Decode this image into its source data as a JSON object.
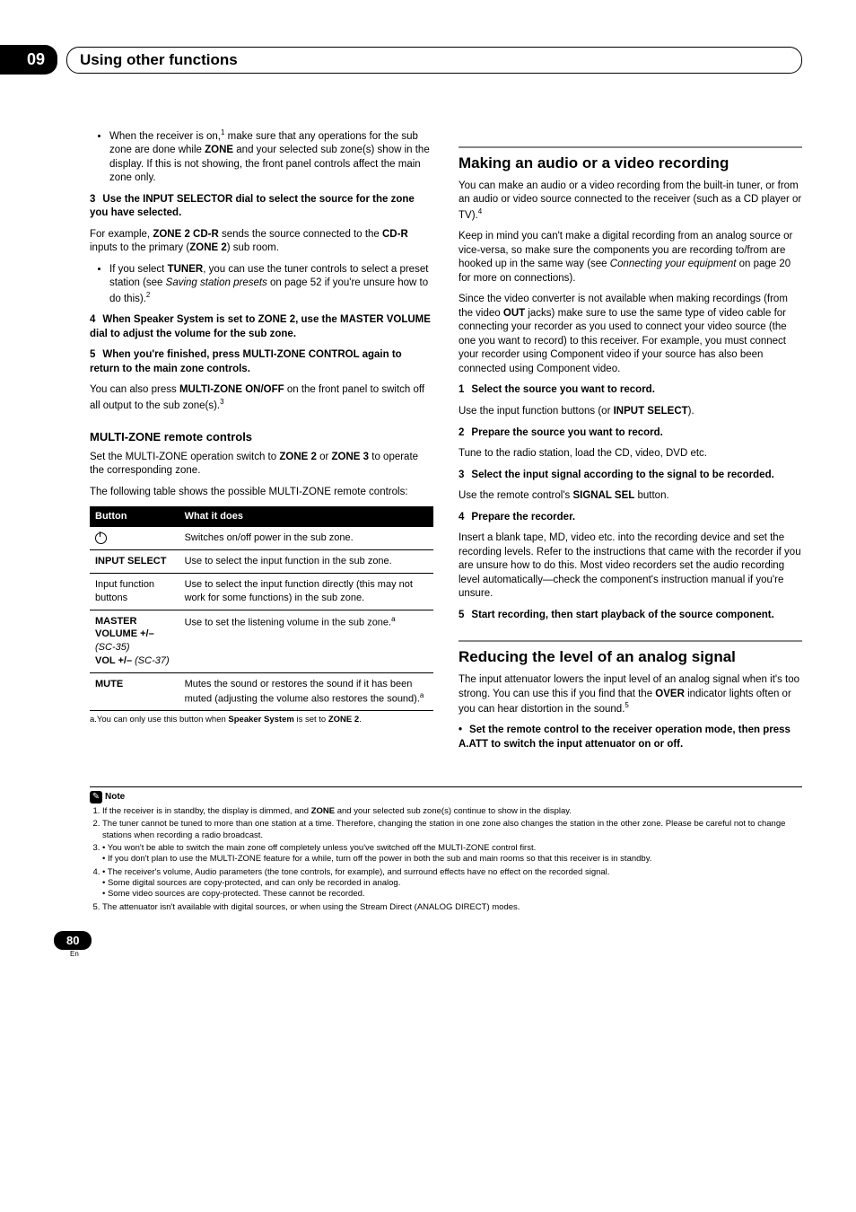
{
  "header": {
    "chapter_number": "09",
    "chapter_title": "Using other functions"
  },
  "left": {
    "bullet1_a": "When the receiver is on,",
    "bullet1_sup": "1",
    "bullet1_b": " make sure that any operations for the sub zone are done while ",
    "bullet1_bold": "ZONE",
    "bullet1_c": " and your selected sub zone(s) show in the display. If this is not showing, the front panel controls affect the main zone only.",
    "step3": "Use the INPUT SELECTOR dial to select the source for the zone you have selected.",
    "step3_body_a": "For example, ",
    "step3_bold1": "ZONE 2 CD-R",
    "step3_body_b": " sends the source connected to the ",
    "step3_bold2": "CD-R",
    "step3_body_c": " inputs to the primary (",
    "step3_bold3": "ZONE 2",
    "step3_body_d": ") sub room.",
    "step3_sub_a": "If you select ",
    "step3_sub_bold": "TUNER",
    "step3_sub_b": ", you can use the tuner controls to select a preset station (see ",
    "step3_sub_ital": "Saving station presets",
    "step3_sub_c": " on page 52 if you're unsure how to do this).",
    "step3_sub_sup": "2",
    "step4": "When Speaker System is set to ZONE 2, use the MASTER VOLUME dial to adjust the volume for the sub zone.",
    "step5": "When you're finished, press MULTI-ZONE CONTROL again to return to the main zone controls.",
    "step5_body_a": "You can also press ",
    "step5_bold": "MULTI-ZONE ON/OFF",
    "step5_body_b": " on the front panel to switch off all output to the sub zone(s).",
    "step5_sup": "3",
    "subhead": "MULTI-ZONE remote controls",
    "subhead_body_a": "Set the MULTI-ZONE operation switch to ",
    "subhead_bold1": "ZONE 2",
    "subhead_body_b": " or ",
    "subhead_bold2": "ZONE 3",
    "subhead_body_c": " to operate the corresponding zone.",
    "table_intro": "The following table shows the possible MULTI-ZONE remote controls:",
    "table": {
      "col1": "Button",
      "col2": "What it does",
      "rows": [
        {
          "c1": "__POWER__",
          "c2": "Switches on/off power in the sub zone."
        },
        {
          "c1_bold": "INPUT SELECT",
          "c2": "Use to select the input function in the sub zone."
        },
        {
          "c1": "Input function buttons",
          "c2": "Use to select the input function directly (this may not work for some functions) in the sub zone."
        },
        {
          "c1_bold": "MASTER VOLUME +/–",
          "c1_ital": " (SC-35)",
          "newline": true,
          "c1_bold2": "VOL +/–",
          "c1_ital2": " (SC-37)",
          "c2_a": "Use to set the listening volume in the sub zone.",
          "c2_sup": "a"
        },
        {
          "c1_bold": "MUTE",
          "c2_a": "Mutes the sound or restores the sound if it has been muted (adjusting the volume also restores the sound).",
          "c2_sup": "a"
        }
      ]
    },
    "tablenote_a": "a.You can only use this button when ",
    "tablenote_bold1": "Speaker System",
    "tablenote_b": " is set to ",
    "tablenote_bold2": "ZONE 2",
    "tablenote_c": "."
  },
  "right": {
    "sec1_head": "Making an audio or a video recording",
    "sec1_p1_a": "You can make an audio or a video recording from the built-in tuner, or from an audio or video source connected to the receiver (such as a CD player or TV).",
    "sec1_p1_sup": "4",
    "sec1_p2_a": "Keep in mind you can't make a digital recording from an analog source or vice-versa, so make sure the components you are recording to/from are hooked up in the same way (see ",
    "sec1_p2_ital": "Connecting your equipment",
    "sec1_p2_b": " on page 20 for more on connections).",
    "sec1_p3_a": "Since the video converter is not available when making recordings (from the video ",
    "sec1_p3_bold": "OUT",
    "sec1_p3_b": " jacks) make sure to use the same type of video cable for connecting your recorder as you used to connect your video source (the one you want to record) to this receiver. For example, you must connect your recorder using Component video if your source has also been connected using Component video.",
    "s1": "Select the source you want to record.",
    "s1_body_a": "Use the input function buttons (or ",
    "s1_bold": "INPUT SELECT",
    "s1_body_b": ").",
    "s2": "Prepare the source you want to record.",
    "s2_body": "Tune to the radio station, load the CD, video, DVD etc.",
    "s3": "Select the input signal according to the signal to be recorded.",
    "s3_body_a": "Use the remote control's ",
    "s3_bold": "SIGNAL SEL",
    "s3_body_b": " button.",
    "s4": "Prepare the recorder.",
    "s4_body": "Insert a blank tape, MD, video etc. into the recording device and set the recording levels. Refer to the instructions that came with the recorder if you are unsure how to do this. Most video recorders set the audio recording level automatically—check the component's instruction manual if you're unsure.",
    "s5": "Start recording, then start playback of the source component.",
    "sec2_head": "Reducing the level of an analog signal",
    "sec2_p1_a": "The input attenuator lowers the input level of an analog signal when it's too strong. You can use this if you find that the ",
    "sec2_bold": "OVER",
    "sec2_p1_b": " indicator lights often or you can hear distortion in the sound.",
    "sec2_sup": "5",
    "sec2_bullet": "Set the remote control to the receiver operation mode, then press A.ATT to switch the input attenuator on or off."
  },
  "notes": {
    "label": "Note",
    "n1_a": "If the receiver is in standby, the display is dimmed, and ",
    "n1_bold": "ZONE",
    "n1_b": " and your selected sub zone(s) continue to show in the display.",
    "n2": "The tuner cannot be tuned to more than one station at a time. Therefore, changing the station in one zone also changes the station in the other zone. Please be careful not to change stations when recording a radio broadcast.",
    "n3a": "• You won't be able to switch the main zone off completely unless you've switched off the MULTI-ZONE control first.",
    "n3b": "• If you don't plan to use the MULTI-ZONE feature for a while, turn off the power in both the sub and main rooms so that this receiver is in standby.",
    "n4a": "• The receiver's volume, Audio parameters (the tone controls, for example), and surround effects have no effect on the recorded signal.",
    "n4b": "• Some digital sources are copy-protected, and can only be recorded in analog.",
    "n4c": "• Some video sources are copy-protected. These cannot be recorded.",
    "n5": "The attenuator isn't available with digital sources, or when using the Stream Direct (ANALOG DIRECT) modes."
  },
  "footer": {
    "page": "80",
    "lang": "En"
  }
}
